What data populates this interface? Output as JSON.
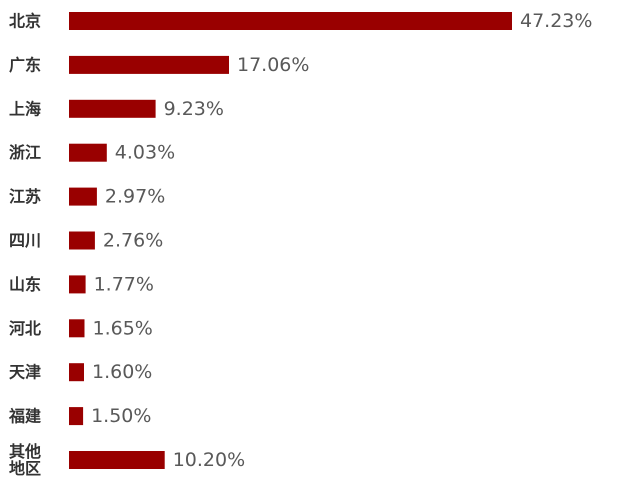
{
  "chart_data": {
    "type": "bar",
    "orientation": "horizontal",
    "categories": [
      "北京",
      "广东",
      "上海",
      "浙江",
      "江苏",
      "四川",
      "山东",
      "河北",
      "天津",
      "福建",
      "其他地区"
    ],
    "category_lines": [
      [
        "北京"
      ],
      [
        "广东"
      ],
      [
        "上海"
      ],
      [
        "浙江"
      ],
      [
        "江苏"
      ],
      [
        "四川"
      ],
      [
        "山东"
      ],
      [
        "河北"
      ],
      [
        "天津"
      ],
      [
        "福建"
      ],
      [
        "其他",
        "地区"
      ]
    ],
    "values": [
      47.23,
      17.06,
      9.23,
      4.03,
      2.97,
      2.76,
      1.77,
      1.65,
      1.6,
      1.5,
      10.2
    ],
    "value_labels": [
      "47.23%",
      "17.06%",
      "9.23%",
      "4.03%",
      "2.97%",
      "2.76%",
      "1.77%",
      "1.65%",
      "1.60%",
      "1.50%",
      "10.20%"
    ],
    "unit": "%",
    "bar_color": "#990000",
    "title": "",
    "xlabel": "",
    "ylabel": "",
    "grid": false,
    "legend": "none"
  }
}
